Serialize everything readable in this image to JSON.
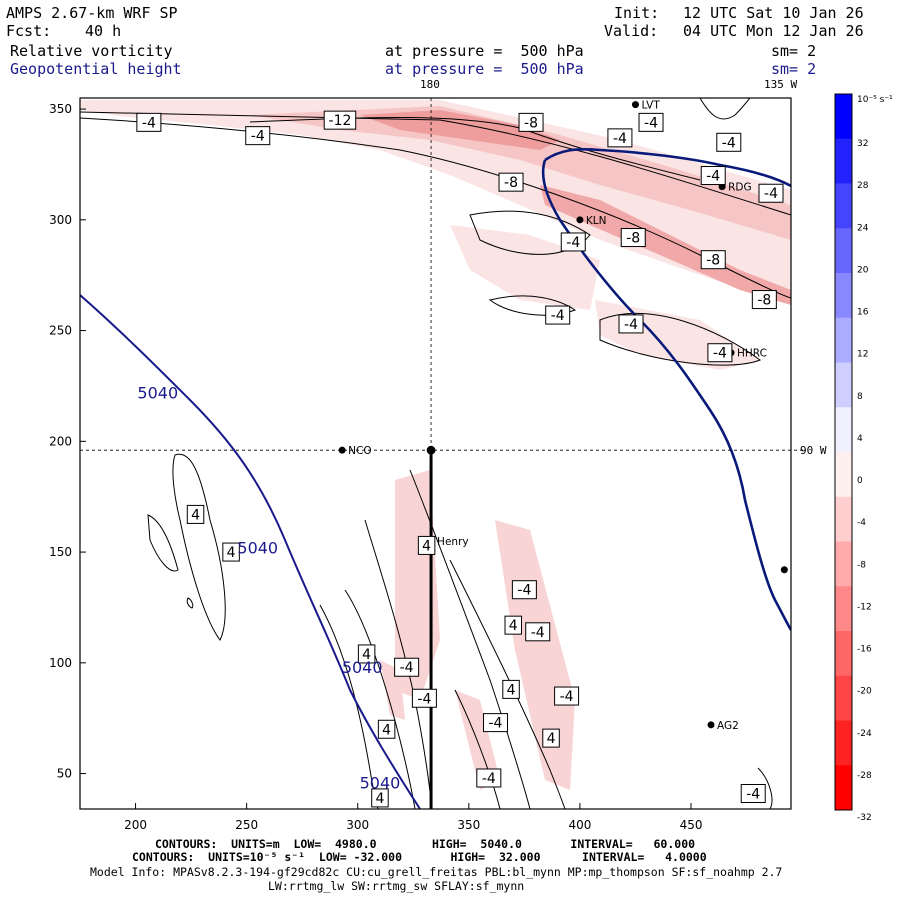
{
  "header": {
    "model": "AMPS 2.67-km WRF SP",
    "fcst_label": "Fcst:",
    "fcst_value": "40 h",
    "init_label": "Init:",
    "init_value": "12 UTC Sat 10 Jan 26",
    "valid_label": "Valid:",
    "valid_value": "04 UTC Mon 12 Jan 26",
    "field1_name": "Relative vorticity",
    "field1_level": "at pressure =  500 hPa",
    "field1_sm": "sm= 2",
    "field2_name": "Geopotential height",
    "field2_level": "at pressure =  500 hPa",
    "field2_sm": "sm= 2",
    "lon_top_180": "180",
    "lon_top_135w": "135 W",
    "lon_right_90w": "90 W"
  },
  "footer": {
    "line1": "CONTOURS:  UNITS=m  LOW=  4980.0        HIGH=  5040.0       INTERVAL=   60.000",
    "line2": "CONTOURS:  UNITS=10⁻⁵ s⁻¹  LOW= -32.000       HIGH=  32.000      INTERVAL=   4.0000",
    "line3": "Model Info: MPASv8.2.3-194-gf29cd82c CU:cu_grell_freitas PBL:bl_mynn MP:mp_thompson SF:sf_noahmp 2.7",
    "line4": "LW:rrtmg_lw SW:rrtmg_sw SFLAY:sf_mynn"
  },
  "colors": {
    "height_contour": "#1a1a8c",
    "coast": "#0a1a7a"
  },
  "chart_data": {
    "type": "contour",
    "title": "Relative vorticity and Geopotential height at 500 hPa",
    "x_ticks": [
      200,
      250,
      300,
      350,
      400,
      450
    ],
    "y_ticks": [
      50,
      100,
      150,
      200,
      250,
      300,
      350
    ],
    "xlim": [
      175,
      495
    ],
    "ylim": [
      34,
      355
    ],
    "crosshair": {
      "x": 333,
      "y": 196
    },
    "colorbar": {
      "unit_label": "10⁻⁵ s⁻¹",
      "ticks": [
        32,
        28,
        24,
        20,
        16,
        12,
        8,
        4,
        0,
        -4,
        -8,
        -12,
        -16,
        -20,
        -24,
        -28,
        -32
      ],
      "top_color": "#0000ff",
      "bottom_color": "#ff0000"
    },
    "stations": [
      {
        "name": "NCO",
        "x": 293,
        "y": 196
      },
      {
        "name": "Henry",
        "x": 333,
        "y": 155
      },
      {
        "name": "KLN",
        "x": 400,
        "y": 300
      },
      {
        "name": "RDG",
        "x": 464,
        "y": 315
      },
      {
        "name": "HHRC",
        "x": 468,
        "y": 240
      },
      {
        "name": "AG2",
        "x": 459,
        "y": 72
      },
      {
        "name": "LVT",
        "x": 425,
        "y": 352
      },
      {
        "name": "",
        "x": 492,
        "y": 142
      }
    ],
    "height_labels": [
      {
        "text": "5040",
        "x": 210,
        "y": 222
      },
      {
        "text": "5040",
        "x": 255,
        "y": 152
      },
      {
        "text": "5040",
        "x": 302,
        "y": 98
      },
      {
        "text": "5040",
        "x": 310,
        "y": 46
      }
    ],
    "vorticity_labels": [
      {
        "text": "-4",
        "x": 206,
        "y": 344
      },
      {
        "text": "-4",
        "x": 255,
        "y": 338
      },
      {
        "text": "-12",
        "x": 292,
        "y": 345
      },
      {
        "text": "-8",
        "x": 378,
        "y": 344
      },
      {
        "text": "-4",
        "x": 418,
        "y": 337
      },
      {
        "text": "-4",
        "x": 432,
        "y": 344
      },
      {
        "text": "-4",
        "x": 467,
        "y": 335
      },
      {
        "text": "-8",
        "x": 369,
        "y": 317
      },
      {
        "text": "-4",
        "x": 460,
        "y": 320
      },
      {
        "text": "-4",
        "x": 486,
        "y": 312
      },
      {
        "text": "-4",
        "x": 397,
        "y": 290
      },
      {
        "text": "-8",
        "x": 424,
        "y": 292
      },
      {
        "text": "-8",
        "x": 460,
        "y": 282
      },
      {
        "text": "-8",
        "x": 483,
        "y": 264
      },
      {
        "text": "-4",
        "x": 390,
        "y": 257
      },
      {
        "text": "-4",
        "x": 423,
        "y": 253
      },
      {
        "text": "-4",
        "x": 463,
        "y": 240
      },
      {
        "text": "4",
        "x": 227,
        "y": 167
      },
      {
        "text": "4",
        "x": 243,
        "y": 150
      },
      {
        "text": "4",
        "x": 304,
        "y": 104
      },
      {
        "text": "4",
        "x": 313,
        "y": 70
      },
      {
        "text": "4",
        "x": 310,
        "y": 39
      },
      {
        "text": "-4",
        "x": 322,
        "y": 98
      },
      {
        "text": "-4",
        "x": 330,
        "y": 84
      },
      {
        "text": "4",
        "x": 331,
        "y": 153
      },
      {
        "text": "-4",
        "x": 375,
        "y": 133
      },
      {
        "text": "4",
        "x": 370,
        "y": 117
      },
      {
        "text": "-4",
        "x": 381,
        "y": 114
      },
      {
        "text": "4",
        "x": 369,
        "y": 88
      },
      {
        "text": "-4",
        "x": 394,
        "y": 85
      },
      {
        "text": "-4",
        "x": 362,
        "y": 73
      },
      {
        "text": "4",
        "x": 387,
        "y": 66
      },
      {
        "text": "-4",
        "x": 359,
        "y": 48
      },
      {
        "text": "-4",
        "x": 478,
        "y": 41
      }
    ]
  }
}
